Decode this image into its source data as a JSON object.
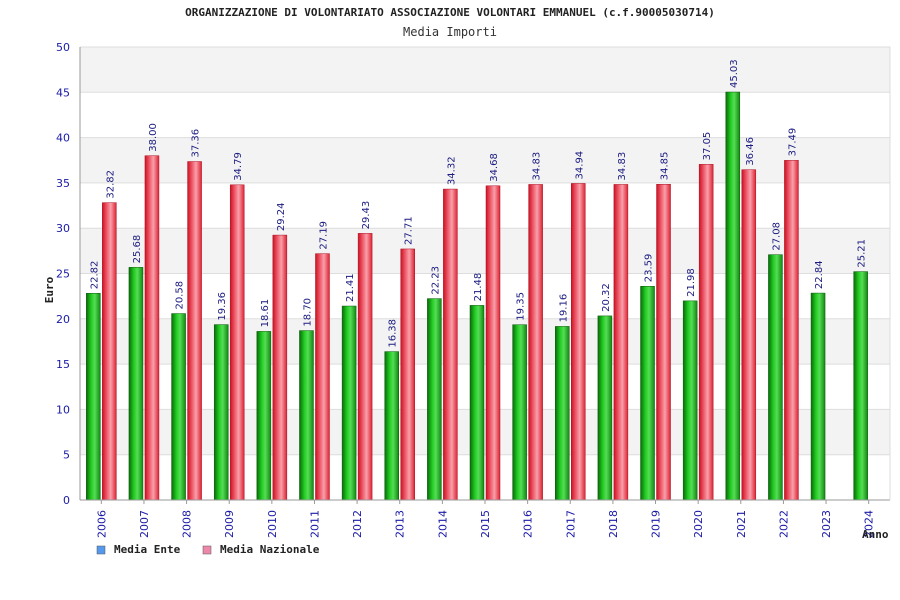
{
  "chart_data": {
    "type": "bar",
    "title": "ORGANIZZAZIONE DI VOLONTARIATO ASSOCIAZIONE VOLONTARI EMMANUEL (c.f.90005030714)",
    "subtitle": "Media Importi",
    "xlabel": "Anno",
    "ylabel": "Euro",
    "ylim": [
      0,
      50
    ],
    "yticks": [
      0,
      5,
      10,
      15,
      20,
      25,
      30,
      35,
      40,
      45,
      50
    ],
    "grid": true,
    "legend_position": "bottom-left",
    "categories": [
      "2006",
      "2007",
      "2008",
      "2009",
      "2010",
      "2011",
      "2012",
      "2013",
      "2014",
      "2015",
      "2016",
      "2017",
      "2018",
      "2019",
      "2020",
      "2021",
      "2022",
      "2023",
      "2024"
    ],
    "series": [
      {
        "name": "Media Ente",
        "color": "#22aa22",
        "legend_color": "#5599ee",
        "values": [
          22.82,
          25.68,
          20.58,
          19.36,
          18.61,
          18.7,
          21.41,
          16.38,
          22.23,
          21.48,
          19.35,
          19.16,
          20.32,
          23.59,
          21.98,
          45.03,
          27.08,
          22.84,
          25.21
        ],
        "labels": [
          "22.82",
          "25.68",
          "20.58",
          "19.36",
          "18.61",
          "18.70",
          "21.41",
          "16.38",
          "22.23",
          "21.48",
          "19.35",
          "19.16",
          "20.32",
          "23.59",
          "21.98",
          "45.03",
          "27.08",
          "22.84",
          "25.21"
        ]
      },
      {
        "name": "Media Nazionale",
        "color": "#ee3344",
        "legend_color": "#ee88aa",
        "values": [
          32.82,
          38.0,
          37.36,
          34.79,
          29.24,
          27.19,
          29.43,
          27.71,
          34.32,
          34.68,
          34.83,
          34.94,
          34.83,
          34.85,
          37.05,
          36.46,
          37.49,
          null,
          null
        ],
        "labels": [
          "32.82",
          "38.00",
          "37.36",
          "34.79",
          "29.24",
          "27.19",
          "29.43",
          "27.71",
          "34.32",
          "34.68",
          "34.83",
          "34.94",
          "34.83",
          "34.85",
          "37.05",
          "36.46",
          "37.49",
          null,
          null
        ]
      }
    ]
  }
}
